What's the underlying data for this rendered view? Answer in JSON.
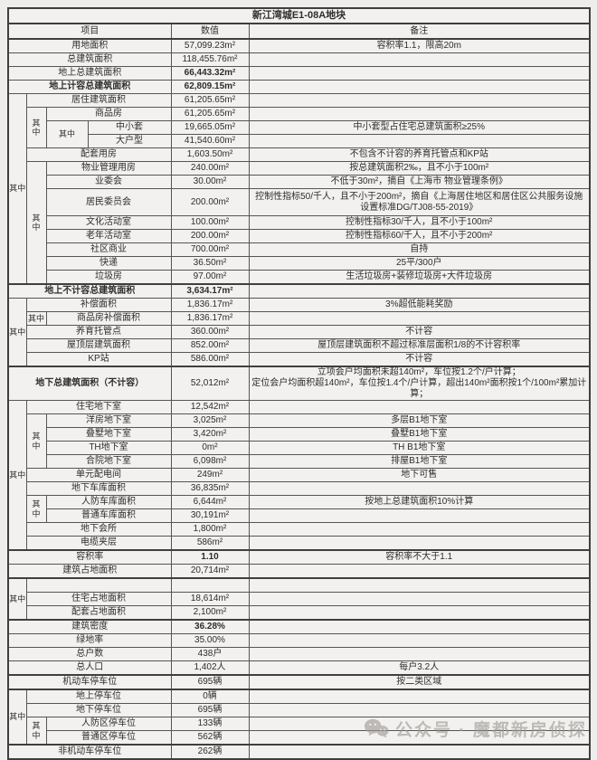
{
  "title": "新江湾城E1-08A地块",
  "header": {
    "item": "项目",
    "value": "数值",
    "remark": "备注"
  },
  "table": {
    "merge_label": "其中",
    "rows": [
      {
        "label": "用地面积",
        "value": "57,099.23m²",
        "remark": "容积率1.1，限高20m"
      },
      {
        "label": "总建筑面积",
        "value": "118,455.76m²",
        "remark": ""
      },
      {
        "label": "地上总建筑面积",
        "value": "66,443.32m²",
        "remark": "",
        "boldValue": true
      },
      {
        "label": "地上计容总建筑面积",
        "value": "62,809.15m²",
        "remark": "",
        "boldLabel": true,
        "boldValue": true
      },
      {
        "label": "居住建筑面积",
        "value": "61,205.65m²",
        "remark": "",
        "indent": 1,
        "spans": [
          {
            "col": 0,
            "rows": 13
          }
        ]
      },
      {
        "label": "商品房",
        "value": "61,205.65m²",
        "remark": "",
        "indent": 2,
        "spans": [
          {
            "col": 1,
            "rows": 3
          }
        ]
      },
      {
        "label": "中小套",
        "value": "19,665.05m²",
        "remark": "中小套型占住宅总建筑面积≥25%",
        "indent": 3,
        "spans": [
          {
            "col": 2,
            "rows": 2
          }
        ]
      },
      {
        "label": "大户型",
        "value": "41,540.60m²",
        "remark": "",
        "indent": 3
      },
      {
        "label": "配套用房",
        "value": "1,603.50m²",
        "remark": "不包含不计容的养育托管点和KP站",
        "indent": 1
      },
      {
        "label": "物业管理用房",
        "value": "240.00m²",
        "remark": "按总建筑面积2‰，且不小于100m²",
        "indent": 2,
        "spans": [
          {
            "col": 1,
            "rows": 8
          }
        ]
      },
      {
        "label": "业委会",
        "value": "30.00m²",
        "remark": "不低于30m²，摘自《上海市 物业管理条例》",
        "indent": 2
      },
      {
        "label": "居民委员会",
        "value": "200.00m²",
        "remark": "控制性指标50/千人，且不小于200m²，摘自《上海居住地区和居住区公共服务设施设置标准DG/TJ08-55-2019》",
        "indent": 2,
        "tall": true
      },
      {
        "label": "文化活动室",
        "value": "100.00m²",
        "remark": "控制性指标30/千人，且不小于100m²",
        "indent": 2
      },
      {
        "label": "老年活动室",
        "value": "200.00m²",
        "remark": "控制性指标60/千人，且不小于200m²",
        "indent": 2
      },
      {
        "label": "社区商业",
        "value": "700.00m²",
        "remark": "自持",
        "indent": 2
      },
      {
        "label": "快递",
        "value": "36.50m²",
        "remark": "25平/300户",
        "indent": 2
      },
      {
        "label": "垃圾房",
        "value": "97.00m²",
        "remark": "生活垃圾房+装修垃圾房+大件垃圾房",
        "indent": 2
      },
      {
        "label": "地上不计容总建筑面积",
        "value": "3,634.17m²",
        "remark": "",
        "boldLabel": true,
        "boldValue": true,
        "section": true
      },
      {
        "label": "补偿面积",
        "value": "1,836.17m²",
        "remark": "3%超低能耗奖励",
        "indent": 1,
        "spans": [
          {
            "col": 0,
            "rows": 5
          }
        ]
      },
      {
        "label": "商品房补偿面积",
        "value": "1,836.17m²",
        "remark": "",
        "indent": 2,
        "spans": [
          {
            "col": 1,
            "rows": 1
          }
        ]
      },
      {
        "label": "养育托管点",
        "value": "360.00m²",
        "remark": "不计容",
        "indent": 1
      },
      {
        "label": "屋顶层建筑面积",
        "value": "852.00m²",
        "remark": "屋顶层建筑面积不超过标准层面积1/8的不计容积率",
        "indent": 1
      },
      {
        "label": "KP站",
        "value": "586.00m²",
        "remark": "不计容",
        "indent": 1
      },
      {
        "label": "地下总建筑面积（不计容）",
        "value": "52,012m²",
        "remark": "立项会户均面积未超140m²，车位按1.2个/户计算；\n定位会户均面积超140m²，车位按1.4个/户计算，超出140m²面积按1个/100m²累加计算；",
        "boldLabel": true,
        "tall": true,
        "section": true
      },
      {
        "label": "住宅地下室",
        "value": "12,542m²",
        "remark": "",
        "indent": 1,
        "spans": [
          {
            "col": 0,
            "rows": 11
          }
        ]
      },
      {
        "label": "洋房地下室",
        "value": "3,025m²",
        "remark": "多层B1地下室",
        "indent": 2,
        "spans": [
          {
            "col": 1,
            "rows": 4
          }
        ]
      },
      {
        "label": "叠墅地下室",
        "value": "3,420m²",
        "remark": "叠墅B1地下室",
        "indent": 2
      },
      {
        "label": "TH地下室",
        "value": "0m²",
        "remark": "TH B1地下室",
        "indent": 2
      },
      {
        "label": "合院地下室",
        "value": "6,098m²",
        "remark": "排屋B1地下室",
        "indent": 2
      },
      {
        "label": "单元配电间",
        "value": "249m²",
        "remark": "地下可售",
        "indent": 1
      },
      {
        "label": "地下车库面积",
        "value": "36,835m²",
        "remark": "",
        "indent": 1
      },
      {
        "label": "人防车库面积",
        "value": "6,644m²",
        "remark": "按地上总建筑面积10%计算",
        "indent": 2,
        "spans": [
          {
            "col": 1,
            "rows": 2
          }
        ]
      },
      {
        "label": "普通车库面积",
        "value": "30,191m²",
        "remark": "",
        "indent": 2
      },
      {
        "label": "地下会所",
        "value": "1,800m²",
        "remark": "",
        "indent": 1
      },
      {
        "label": "电缆夹层",
        "value": "586m²",
        "remark": "",
        "indent": 1
      },
      {
        "label": "容积率",
        "value": "1.10",
        "remark": "容积率不大于1.1",
        "boldValue": true,
        "section": true
      },
      {
        "label": "建筑占地面积",
        "value": "20,714m²",
        "remark": ""
      },
      {
        "label": "",
        "value": "",
        "remark": "",
        "indent": 1,
        "spans": [
          {
            "col": 0,
            "rows": 3
          }
        ],
        "section": true
      },
      {
        "label": "住宅占地面积",
        "value": "18,614m²",
        "remark": "",
        "indent": 1
      },
      {
        "label": "配套占地面积",
        "value": "2,100m²",
        "remark": "",
        "indent": 1
      },
      {
        "label": "建筑密度",
        "value": "36.28%",
        "remark": "",
        "boldValue": true,
        "section": true
      },
      {
        "label": "绿地率",
        "value": "35.00%",
        "remark": ""
      },
      {
        "label": "总户数",
        "value": "438户",
        "remark": ""
      },
      {
        "label": "总人口",
        "value": "1,402人",
        "remark": "每户3.2人"
      },
      {
        "label": "机动车停车位",
        "value": "695辆",
        "remark": "按二类区域",
        "section": true
      },
      {
        "label": "地上停车位",
        "value": "0辆",
        "remark": "",
        "indent": 1,
        "spans": [
          {
            "col": 0,
            "rows": 4
          }
        ],
        "section": true
      },
      {
        "label": "地下停车位",
        "value": "695辆",
        "remark": "",
        "indent": 1
      },
      {
        "label": "人防区停车位",
        "value": "133辆",
        "remark": "",
        "indent": 2,
        "spans": [
          {
            "col": 1,
            "rows": 2
          }
        ]
      },
      {
        "label": "普通区停车位",
        "value": "562辆",
        "remark": "",
        "indent": 2
      },
      {
        "label": "非机动车停车位",
        "value": "262辆",
        "remark": "",
        "section": true
      }
    ]
  },
  "watermark": {
    "icon": "wechat-icon",
    "text": "公众号 · 魔都新房侦探"
  },
  "colors": {
    "page_bg": "#eeedeb",
    "cell_bg": "#f2f1ef",
    "border": "#3f3f3f",
    "text": "#2d2d2d",
    "watermark": "#9d9a96"
  }
}
